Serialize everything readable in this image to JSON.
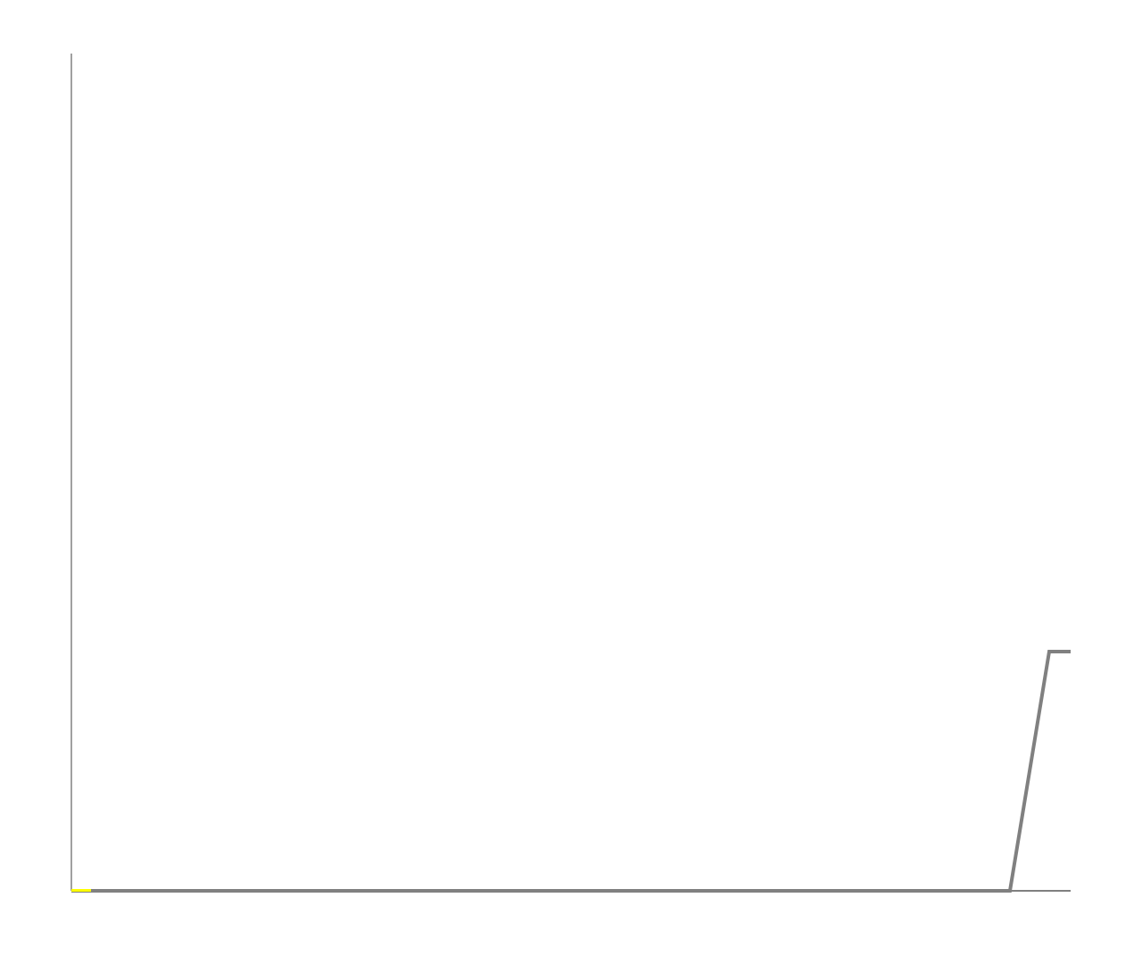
{
  "chart_data": {
    "type": "line",
    "title": "",
    "xlabel": "",
    "ylabel": "",
    "grid": false,
    "legend": "none",
    "xlim": [
      0,
      1120
    ],
    "ylim": [
      0,
      938
    ],
    "x": [
      0,
      1052,
      1096,
      1120
    ],
    "series": [
      {
        "color": "#808080",
        "values": [
          0,
          0,
          268,
          268
        ]
      }
    ],
    "highlight": {
      "color": "#ffff00",
      "x_range": [
        0,
        22
      ],
      "y": 0
    },
    "axis_color": "#808080"
  }
}
